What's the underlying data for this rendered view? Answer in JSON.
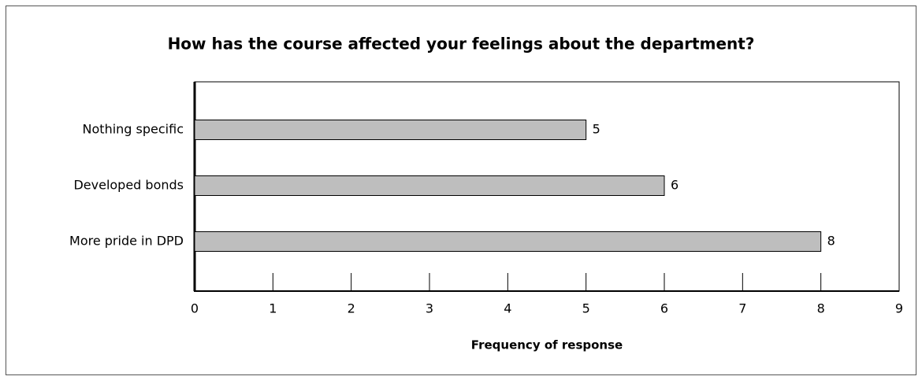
{
  "chart_data": {
    "type": "bar",
    "orientation": "horizontal",
    "title": "How has the course affected your feelings about the department?",
    "categories": [
      "Nothing specific",
      "Developed bonds",
      "More pride in DPD"
    ],
    "values": [
      5,
      6,
      8
    ],
    "color": "#bebebe",
    "xlabel": "Frequency of response",
    "xlim": [
      0,
      9
    ],
    "xticks": [
      0,
      1,
      2,
      3,
      4,
      5,
      6,
      7,
      8,
      9
    ]
  }
}
